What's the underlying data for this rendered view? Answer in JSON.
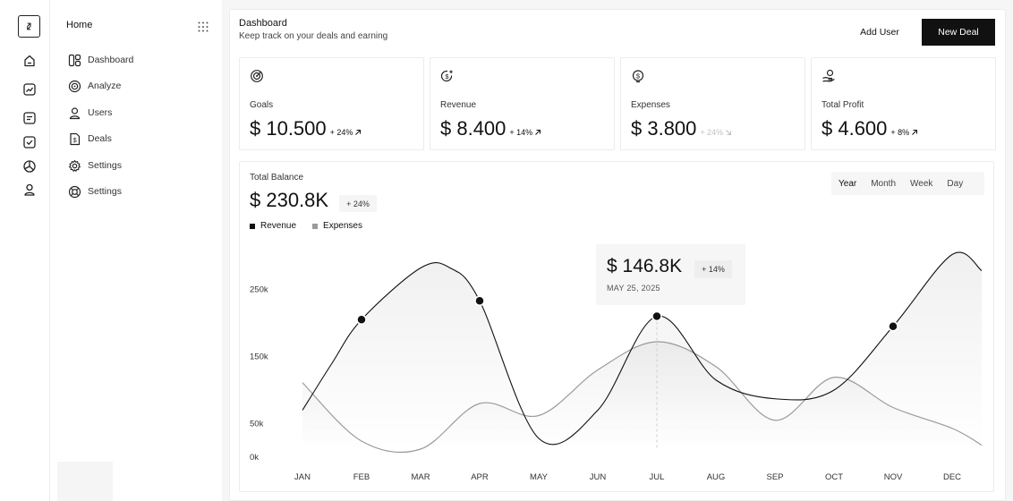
{
  "rail": {
    "icons": [
      "home-icon",
      "trend-icon",
      "message-icon",
      "check-icon",
      "pie-icon",
      "user-icon"
    ]
  },
  "nav": {
    "home_label": "Home",
    "items": [
      {
        "label": "Dashboard",
        "icon": "dashboard-icon"
      },
      {
        "label": "Analyze",
        "icon": "target-icon"
      },
      {
        "label": "Users",
        "icon": "user-icon"
      },
      {
        "label": "Deals",
        "icon": "dollar-file-icon"
      },
      {
        "label": "Settings",
        "icon": "gear-icon"
      },
      {
        "label": "Settings",
        "icon": "lifebuoy-icon"
      }
    ]
  },
  "header": {
    "title": "Dashboard",
    "subtitle": "Keep track on your deals and earning",
    "add_user_label": "Add User",
    "new_deal_label": "New Deal"
  },
  "stats": [
    {
      "label": "Goals",
      "value": "$ 10.500",
      "change": "+ 24%",
      "trend": "up",
      "icon": "target-icon"
    },
    {
      "label": "Revenue",
      "value": "$ 8.400",
      "change": "+ 14%",
      "trend": "up",
      "icon": "dollar-spark-icon"
    },
    {
      "label": "Expenses",
      "value": "$ 3.800",
      "change": "+ 24%",
      "trend": "down",
      "icon": "dollar-circle-icon"
    },
    {
      "label": "Total Profit",
      "value": "$ 4.600",
      "change": "+ 8%",
      "trend": "up",
      "icon": "hand-coin-icon"
    }
  ],
  "balance": {
    "label": "Total Balance",
    "value": "$ 230.8K",
    "change": "+ 24%",
    "periods": [
      "Year",
      "Month",
      "Week",
      "Day"
    ],
    "active_period": "Year"
  },
  "tooltip": {
    "value": "$ 146.8K",
    "change": "+ 14%",
    "date": "MAY 25, 2025",
    "month_index": 6
  },
  "colors": {
    "revenue": "#111111",
    "expenses": "#9a9a9a",
    "accent": "#111111"
  },
  "chart_data": {
    "type": "line",
    "categories": [
      "JAN",
      "FEB",
      "MAR",
      "APR",
      "MAY",
      "JUN",
      "JUL",
      "AUG",
      "SEP",
      "OCT",
      "NOV",
      "DEC"
    ],
    "yticks": [
      "250k",
      "150k",
      "50k",
      "0k"
    ],
    "ylim": [
      0,
      300
    ],
    "legend": "top-left",
    "series": [
      {
        "name": "Revenue",
        "x": [
          0,
          0.5,
          1,
          2,
          2.5,
          3,
          4,
          5,
          6,
          7,
          8,
          9,
          10,
          11,
          11.5
        ],
        "values": [
          70,
          140,
          205,
          282,
          282,
          233,
          28,
          70,
          210,
          115,
          87,
          100,
          195,
          302,
          278
        ],
        "markers": [
          1,
          3,
          6,
          10
        ]
      },
      {
        "name": "Expenses",
        "x": [
          0,
          1,
          2,
          3,
          4,
          5,
          6,
          7,
          8,
          9,
          10,
          11,
          11.5
        ],
        "values": [
          111,
          24,
          12,
          80,
          62,
          130,
          172,
          135,
          55,
          119,
          74,
          43,
          18
        ]
      }
    ]
  }
}
